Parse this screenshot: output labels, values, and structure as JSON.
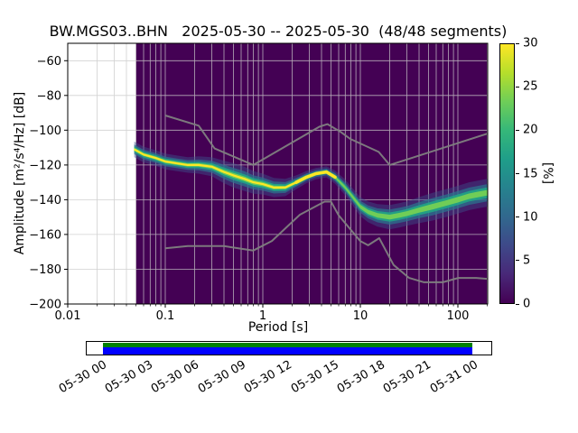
{
  "title": "BW.MGS03..BHN   2025-05-30 -- 2025-05-30  (48/48 segments)",
  "axes": {
    "ylabel": "Amplitude [m²/s⁴/Hz] [dB]",
    "xlabel": "Period [s]",
    "x_ticks": [
      {
        "label": "0.01",
        "value": 0.01
      },
      {
        "label": "0.1",
        "value": 0.1
      },
      {
        "label": "1",
        "value": 1
      },
      {
        "label": "10",
        "value": 10
      },
      {
        "label": "100",
        "value": 100
      }
    ],
    "y_ticks": [
      {
        "label": "−60",
        "value": -60
      },
      {
        "label": "−80",
        "value": -80
      },
      {
        "label": "−100",
        "value": -100
      },
      {
        "label": "−120",
        "value": -120
      },
      {
        "label": "−140",
        "value": -140
      },
      {
        "label": "−160",
        "value": -160
      },
      {
        "label": "−180",
        "value": -180
      },
      {
        "label": "−200",
        "value": -200
      }
    ]
  },
  "colorbar": {
    "label": "[%]",
    "ticks": [
      {
        "label": "0",
        "value": 0
      },
      {
        "label": "5",
        "value": 5
      },
      {
        "label": "10",
        "value": 10
      },
      {
        "label": "15",
        "value": 15
      },
      {
        "label": "20",
        "value": 20
      },
      {
        "label": "25",
        "value": 25
      },
      {
        "label": "30",
        "value": 30
      }
    ]
  },
  "timeline": {
    "covered_color": "#008000",
    "data_color": "#0000ff",
    "labels": [
      {
        "label": "05-30 00",
        "hour": 0
      },
      {
        "label": "05-30 03",
        "hour": 3
      },
      {
        "label": "05-30 06",
        "hour": 6
      },
      {
        "label": "05-30 09",
        "hour": 9
      },
      {
        "label": "05-30 12",
        "hour": 12
      },
      {
        "label": "05-30 15",
        "hour": 15
      },
      {
        "label": "05-30 18",
        "hour": 18
      },
      {
        "label": "05-30 21",
        "hour": 21
      },
      {
        "label": "05-31 00",
        "hour": 24
      }
    ]
  },
  "chart_data": {
    "type": "heatmap",
    "title": "BW.MGS03..BHN   2025-05-30 -- 2025-05-30  (48/48 segments)",
    "xlabel": "Period [s]",
    "ylabel": "Amplitude [m²/s⁴/Hz] [dB]",
    "xscale": "log",
    "xlim": [
      0.01,
      202
    ],
    "ylim": [
      -200,
      -50
    ],
    "grid": true,
    "colorbar_label": "[%]",
    "colorbar_range": [
      0,
      30
    ],
    "colormap": {
      "name": "viridis",
      "stops": [
        "#440154",
        "#482878",
        "#3e4989",
        "#31688e",
        "#26828e",
        "#1f9e89",
        "#35b779",
        "#6ece58",
        "#b5de2b",
        "#fde725"
      ]
    },
    "period_data_min": 0.05,
    "psd_distribution": {
      "description": "PPSD probability ridge: [period_s, mode_amplitude_dB, halfwidth_dB]",
      "points": [
        [
          0.048,
          -111,
          4.5
        ],
        [
          0.06,
          -114,
          4.5
        ],
        [
          0.08,
          -116,
          4.5
        ],
        [
          0.1,
          -118,
          4.5
        ],
        [
          0.13,
          -119,
          4.5
        ],
        [
          0.17,
          -120,
          4.5
        ],
        [
          0.22,
          -120,
          5
        ],
        [
          0.3,
          -121,
          5.5
        ],
        [
          0.4,
          -124,
          6.5
        ],
        [
          0.5,
          -126,
          7
        ],
        [
          0.65,
          -128,
          7
        ],
        [
          0.8,
          -130,
          6.5
        ],
        [
          1.0,
          -131,
          6
        ],
        [
          1.3,
          -133,
          5.5
        ],
        [
          1.7,
          -133,
          5
        ],
        [
          2.2,
          -130,
          4
        ],
        [
          2.8,
          -127,
          3.5
        ],
        [
          3.5,
          -125,
          3.2
        ],
        [
          4.5,
          -124,
          3.2
        ],
        [
          5.5,
          -127,
          3.8
        ],
        [
          7,
          -133,
          4.5
        ],
        [
          8.5,
          -139,
          5
        ],
        [
          10,
          -144,
          5.5
        ],
        [
          12,
          -147,
          6
        ],
        [
          15,
          -149,
          6.5
        ],
        [
          20,
          -150,
          7
        ],
        [
          25,
          -149,
          7
        ],
        [
          30,
          -148,
          7
        ],
        [
          40,
          -146,
          7.5
        ],
        [
          55,
          -144,
          8
        ],
        [
          75,
          -142,
          8
        ],
        [
          100,
          -140,
          8
        ],
        [
          130,
          -138,
          8
        ],
        [
          160,
          -137,
          8
        ],
        [
          200,
          -136,
          8
        ]
      ],
      "layers": [
        {
          "halfwidth_scale": 1.0,
          "color": "#3b528b",
          "opacity": 0.45
        },
        {
          "halfwidth_scale": 0.62,
          "color": "#2c728e",
          "opacity": 0.75
        },
        {
          "halfwidth_scale": 0.38,
          "color": "#21a585",
          "opacity": 0.9
        },
        {
          "halfwidth_scale": 0.2,
          "color": "#75d054",
          "opacity": 0.95
        }
      ],
      "core_color": "#fde725",
      "core_max_period": 6.5,
      "hot_period_range": [
        2.0,
        5.6
      ]
    },
    "noise_models": [
      {
        "name": "NHNM",
        "points": [
          [
            0.1,
            -91.5
          ],
          [
            0.22,
            -97.4
          ],
          [
            0.32,
            -110.5
          ],
          [
            0.8,
            -120
          ],
          [
            3.8,
            -98
          ],
          [
            4.6,
            -96.5
          ],
          [
            6.3,
            -101
          ],
          [
            7.9,
            -105
          ],
          [
            15.4,
            -112.5
          ],
          [
            20,
            -120
          ],
          [
            200,
            -102
          ]
        ]
      },
      {
        "name": "NLNM",
        "points": [
          [
            0.1,
            -168
          ],
          [
            0.17,
            -166.7
          ],
          [
            0.4,
            -166.7
          ],
          [
            0.8,
            -169.2
          ],
          [
            1.24,
            -163.7
          ],
          [
            2.4,
            -148.6
          ],
          [
            4.3,
            -141.1
          ],
          [
            5,
            -141.1
          ],
          [
            6,
            -149
          ],
          [
            10,
            -163.8
          ],
          [
            12,
            -166.2
          ],
          [
            15.6,
            -162.1
          ],
          [
            21.9,
            -177.5
          ],
          [
            31.6,
            -185
          ],
          [
            45,
            -187.5
          ],
          [
            70,
            -187.5
          ],
          [
            101,
            -185
          ],
          [
            154,
            -185
          ],
          [
            200,
            -185.5
          ]
        ]
      }
    ],
    "coverage": {
      "segments_used": 48,
      "segments_total": 48
    }
  }
}
